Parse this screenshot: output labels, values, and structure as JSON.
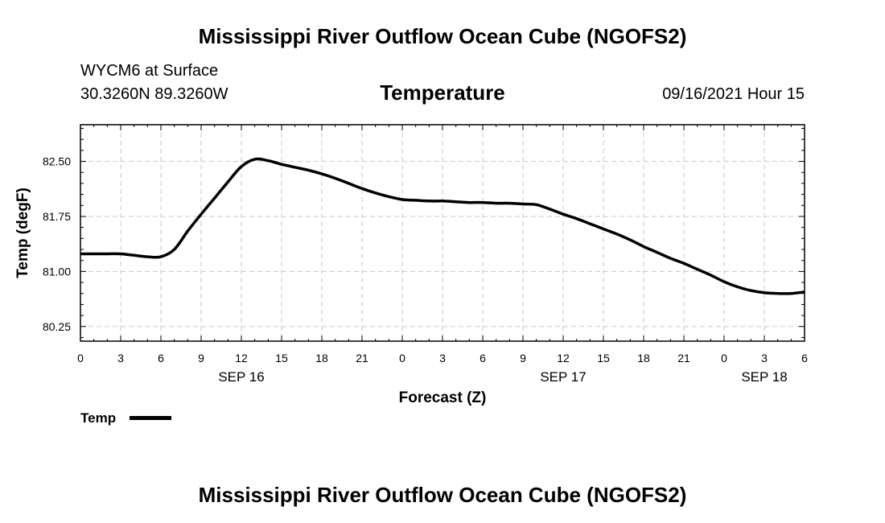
{
  "header": {
    "title_top": "Mississippi River Outflow Ocean Cube (NGOFS2)",
    "title_bottom": "Mississippi River Outflow Ocean Cube (NGOFS2)",
    "station": "WYCM6 at Surface",
    "coords": "30.3260N  89.3260W",
    "datetime": "09/16/2021 Hour 15"
  },
  "legend": {
    "label": "Temp"
  },
  "chart_data": {
    "type": "line",
    "title": "Temperature",
    "xlabel": "Forecast (Z)",
    "ylabel": "Temp (degF)",
    "xlim": [
      0,
      54
    ],
    "ylim": [
      80.05,
      83.0
    ],
    "grid": true,
    "x_ticks": [
      0,
      3,
      6,
      9,
      12,
      15,
      18,
      21,
      24,
      27,
      30,
      33,
      36,
      39,
      42,
      45,
      48,
      51,
      54
    ],
    "x_tick_labels": [
      "0",
      "3",
      "6",
      "9",
      "12",
      "15",
      "18",
      "21",
      "0",
      "3",
      "6",
      "9",
      "12",
      "15",
      "18",
      "21",
      "0",
      "3",
      "6"
    ],
    "y_ticks": [
      80.25,
      81.0,
      81.75,
      82.5
    ],
    "y_tick_labels": [
      "80.25",
      "81.00",
      "81.75",
      "82.50"
    ],
    "date_labels": [
      {
        "x": 12,
        "label": "SEP 16"
      },
      {
        "x": 36,
        "label": "SEP 17"
      },
      {
        "x": 51,
        "label": "SEP 18"
      }
    ],
    "series": [
      {
        "name": "Temp",
        "x": [
          0,
          1,
          2,
          3,
          4,
          5,
          6,
          7,
          8,
          9,
          10,
          11,
          12,
          13,
          14,
          15,
          16,
          17,
          18,
          19,
          20,
          21,
          22,
          23,
          24,
          25,
          26,
          27,
          28,
          29,
          30,
          31,
          32,
          33,
          34,
          35,
          36,
          37,
          38,
          39,
          40,
          41,
          42,
          43,
          44,
          45,
          46,
          47,
          48,
          49,
          50,
          51,
          52,
          53,
          54
        ],
        "values": [
          81.24,
          81.24,
          81.24,
          81.24,
          81.22,
          81.2,
          81.2,
          81.3,
          81.55,
          81.78,
          82.0,
          82.22,
          82.43,
          82.53,
          82.51,
          82.46,
          82.42,
          82.38,
          82.33,
          82.27,
          82.2,
          82.13,
          82.07,
          82.02,
          81.98,
          81.97,
          81.96,
          81.96,
          81.95,
          81.94,
          81.94,
          81.93,
          81.93,
          81.92,
          81.91,
          81.85,
          81.78,
          81.72,
          81.65,
          81.58,
          81.51,
          81.43,
          81.34,
          81.26,
          81.18,
          81.11,
          81.03,
          80.95,
          80.86,
          80.79,
          80.74,
          80.71,
          80.7,
          80.7,
          80.72
        ]
      }
    ]
  }
}
